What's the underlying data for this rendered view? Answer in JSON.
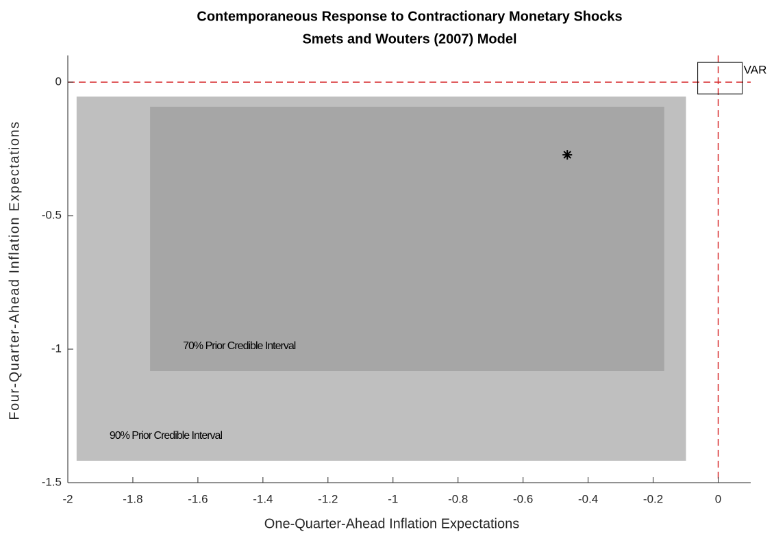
{
  "chart_data": {
    "type": "scatter",
    "title": "Contemporaneous Response to Contractionary Monetary Shocks",
    "subtitle": "Smets and Wouters (2007) Model",
    "x_label": "One-Quarter-Ahead Inflation Expectations",
    "y_label": "Four-Quarter-Ahead Inflation Expectations",
    "xlim": [
      -2,
      0.1
    ],
    "xticks": [
      -2,
      -1.8,
      -1.6,
      -1.4,
      -1.2,
      -1,
      -0.8,
      -0.6,
      -0.4,
      -0.2,
      0
    ],
    "ylim": [
      -1.5,
      0.1
    ],
    "yticks": [
      -1.5,
      -1,
      -0.5,
      0
    ],
    "regions": [
      {
        "name": "90% Prior Credible Interval",
        "x": [
          -1.973,
          -0.099
        ],
        "y": [
          -1.418,
          -0.054
        ],
        "color": "#bfbfbf"
      },
      {
        "name": "70% Prior Credible Interval",
        "x": [
          -1.747,
          -0.166
        ],
        "y": [
          -1.082,
          -0.092
        ],
        "color": "#a6a6a6"
      }
    ],
    "point": {
      "x": -0.464,
      "y": -0.272,
      "color": "#000000"
    },
    "box": {
      "name": "VAR",
      "x": [
        -0.063,
        0.074
      ],
      "y": [
        -0.044,
        0.074
      ],
      "color": "#000000"
    },
    "reference_lines": {
      "x": 0,
      "y": 0,
      "color": "#d62728"
    }
  }
}
